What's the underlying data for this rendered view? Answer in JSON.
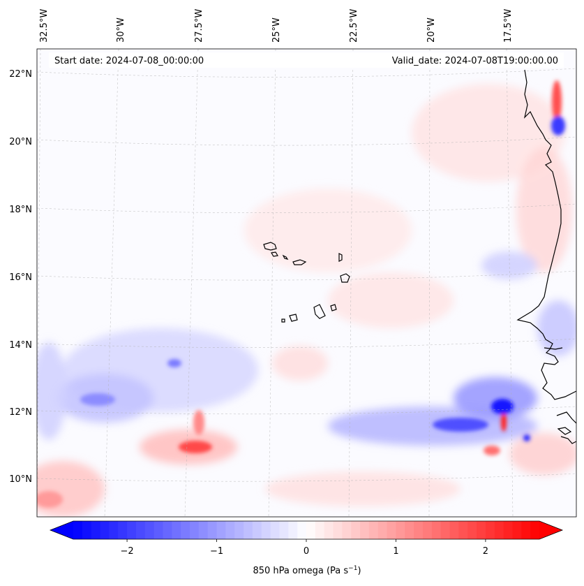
{
  "header": {
    "start_date": "Start date: 2024-07-08_00:00:00",
    "valid_date": "Valid_date: 2024-07-08T19:00:00.00"
  },
  "longitude_labels": [
    "32.5°W",
    "30°W",
    "27.5°W",
    "25°W",
    "22.5°W",
    "20°W",
    "17.5°W"
  ],
  "latitude_labels": [
    "22°N",
    "20°N",
    "18°N",
    "16°N",
    "14°N",
    "12°N",
    "10°N"
  ],
  "colorbar": {
    "tick_labels": [
      "−2",
      "−1",
      "0",
      "1",
      "2"
    ],
    "tick_values": [
      -2,
      -1,
      0,
      1,
      2
    ],
    "range": [
      -2.6,
      2.6
    ],
    "label_text": "850 hPa omega (Pa s",
    "label_exponent": "−1",
    "label_suffix": ")",
    "negative_color": "#0000ff",
    "positive_color": "#ff0000",
    "neutral_color": "#ffffff"
  },
  "map": {
    "field": "850 hPa omega",
    "land_outline_color": "#000000",
    "grid_color": "#b0b0b0"
  }
}
